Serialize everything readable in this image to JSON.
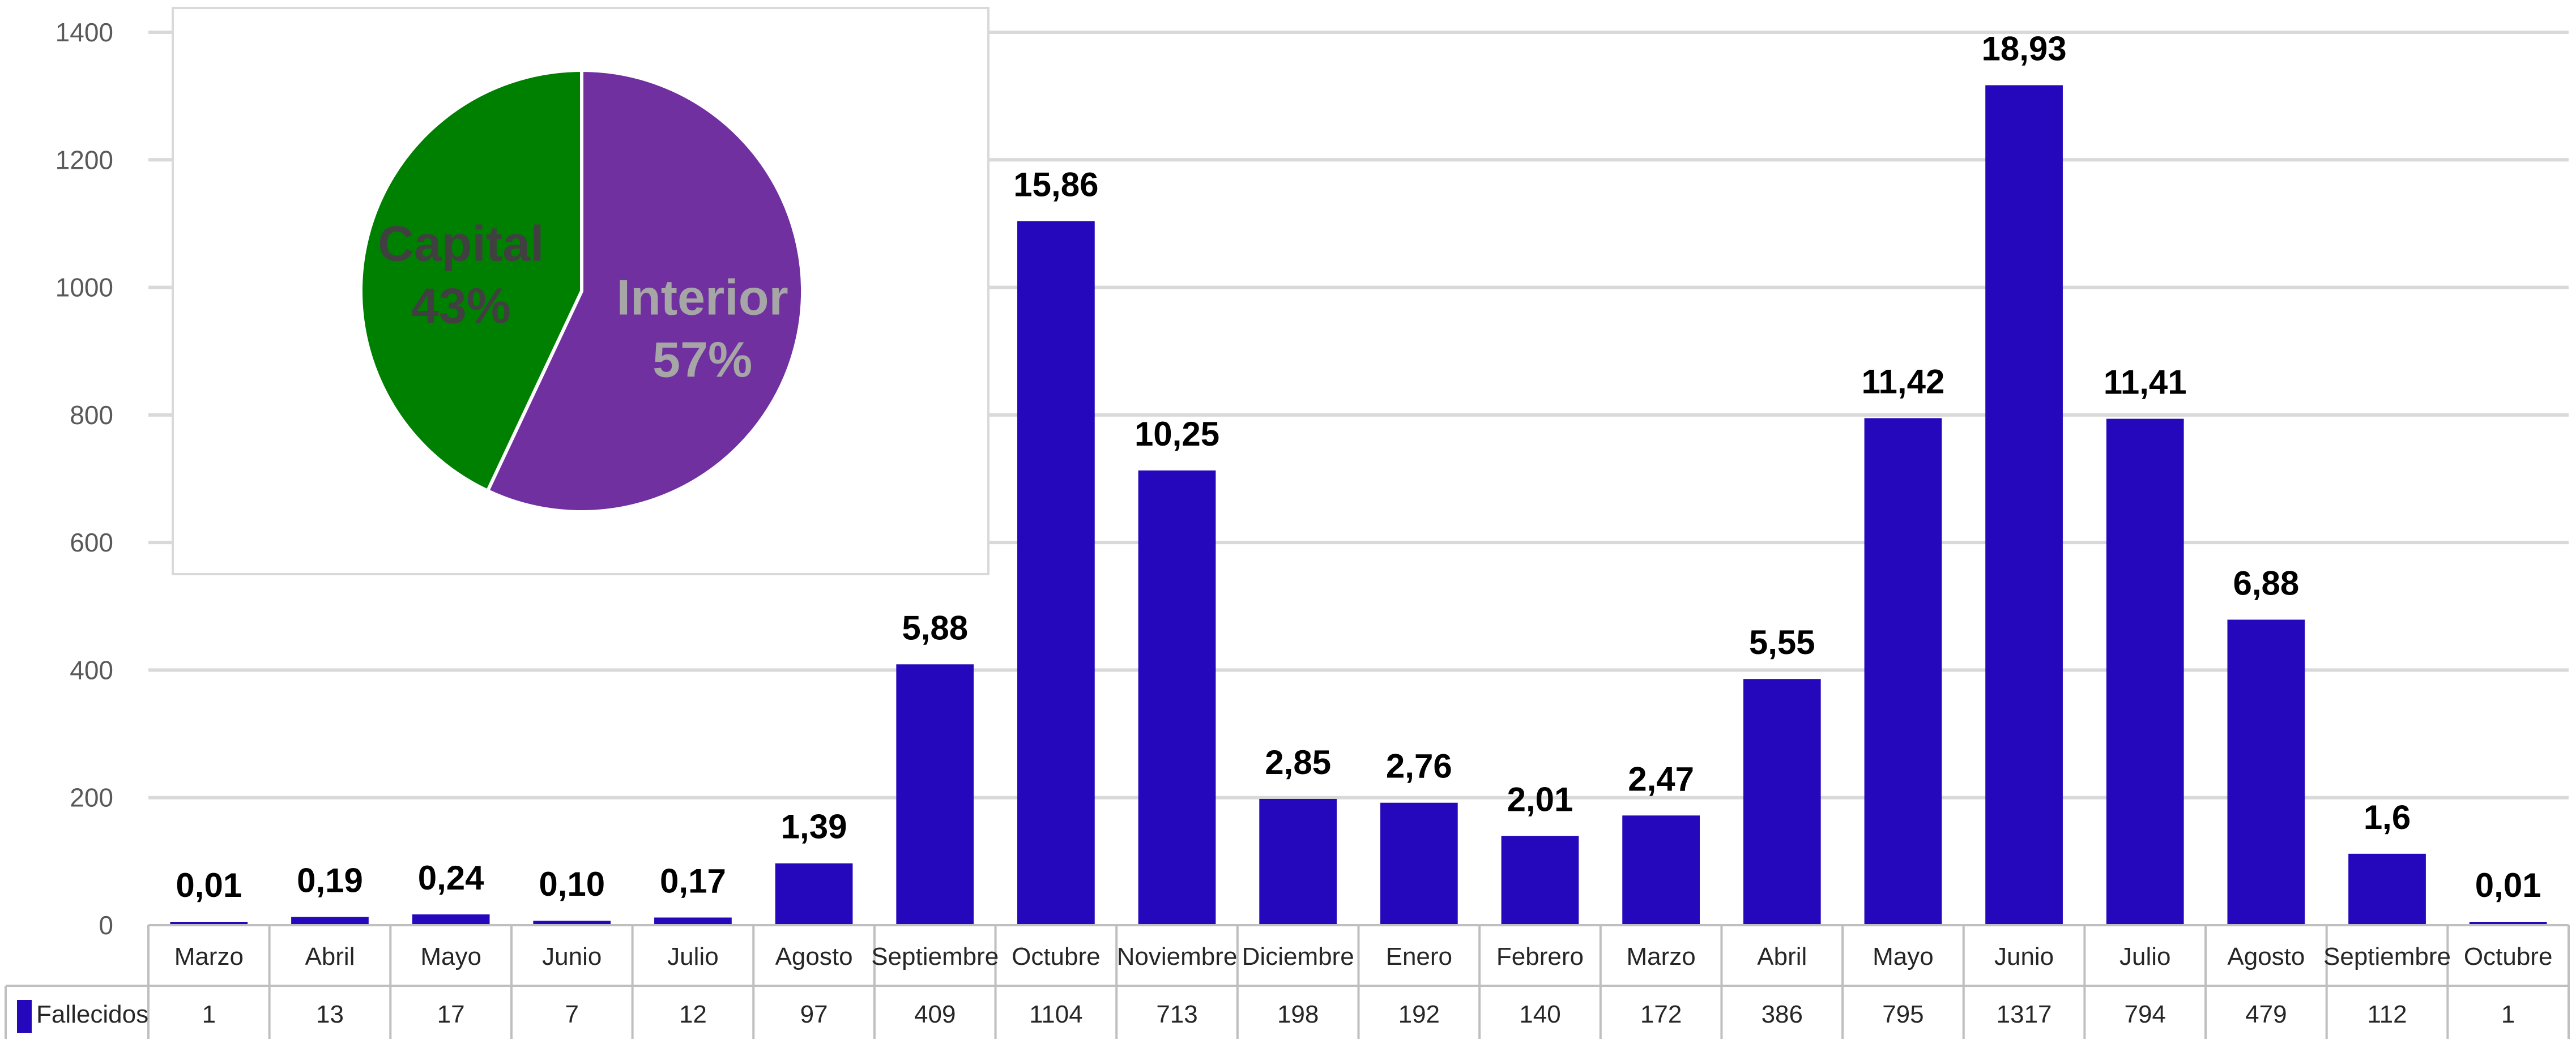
{
  "chart_data": [
    {
      "type": "bar",
      "categories": [
        "Marzo",
        "Abril",
        "Mayo",
        "Junio",
        "Julio",
        "Agosto",
        "Septiembre",
        "Octubre",
        "Noviembre",
        "Diciembre",
        "Enero",
        "Febrero",
        "Marzo",
        "Abril",
        "Mayo",
        "Junio",
        "Julio",
        "Agosto",
        "Septiembre",
        "Octubre"
      ],
      "series": [
        {
          "name": "Fallecidos",
          "color": "#2608BC",
          "values": [
            1,
            13,
            17,
            7,
            12,
            97,
            409,
            1104,
            713,
            198,
            192,
            140,
            172,
            386,
            795,
            1317,
            794,
            479,
            112,
            1
          ],
          "value_labels": [
            "1",
            "13",
            "17",
            "7",
            "12",
            "97",
            "409",
            "1104",
            "713",
            "198",
            "192",
            "140",
            "172",
            "386",
            "795",
            "1317",
            "794",
            "479",
            "112",
            "1"
          ]
        }
      ],
      "data_labels": [
        "0,01",
        "0,19",
        "0,24",
        "0,10",
        "0,17",
        "1,39",
        "5,88",
        "15,86",
        "10,25",
        "2,85",
        "2,76",
        "2,01",
        "2,47",
        "5,55",
        "11,42",
        "18,93",
        "11,41",
        "6,88",
        "1,6",
        "0,01"
      ],
      "ylim": [
        0,
        1400
      ],
      "yticks": [
        "0",
        "200",
        "400",
        "600",
        "800",
        "1000",
        "1200",
        "1400"
      ],
      "ytick_values": [
        0,
        200,
        400,
        600,
        800,
        1000,
        1200,
        1400
      ],
      "grid": true,
      "data_table": true,
      "legend": "data-table-left"
    },
    {
      "type": "pie",
      "slices": [
        {
          "label": "Interior",
          "pct_label": "57%",
          "value": 57,
          "color": "#7030A0",
          "text_color": "#A6A6A6"
        },
        {
          "label": "Capital",
          "pct_label": "43%",
          "value": 43,
          "color": "#008000",
          "text_color": "#404040"
        }
      ]
    }
  ]
}
